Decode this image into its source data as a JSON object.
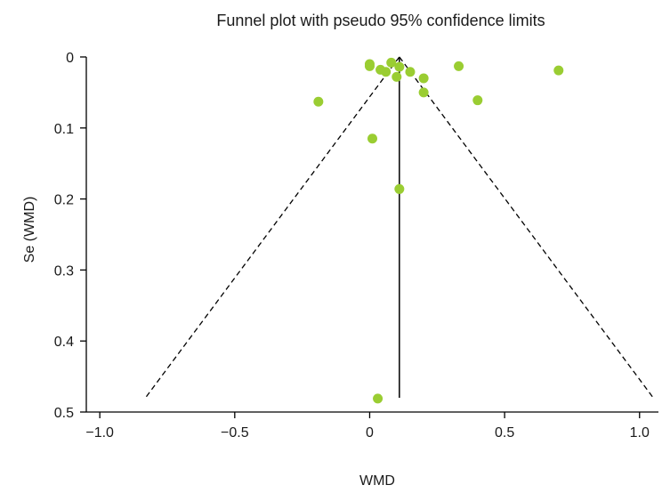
{
  "chart_data": {
    "type": "scatter",
    "title": "Funnel plot with pseudo 95% confidence limits",
    "xlabel": "WMD",
    "ylabel": "Se (WMD)",
    "xlim": [
      -1.05,
      1.07
    ],
    "ylim": [
      0.5,
      0.0
    ],
    "y_inverted": true,
    "xticks": [
      -1.0,
      -0.5,
      0,
      0.5,
      1.0
    ],
    "xtick_labels": [
      "−1.0",
      "−0.5",
      "0",
      "0.5",
      "1.0"
    ],
    "yticks": [
      0,
      0.1,
      0.2,
      0.3,
      0.4,
      0.5
    ],
    "ytick_labels": [
      "0",
      "0.1",
      "0.2",
      "0.3",
      "0.4",
      "0.5"
    ],
    "grid": false,
    "pooled_estimate": 0.11,
    "se_max": 0.48,
    "points": [
      {
        "x": 0.0,
        "y": 0.01
      },
      {
        "x": 0.0,
        "y": 0.013
      },
      {
        "x": 0.04,
        "y": 0.018
      },
      {
        "x": 0.06,
        "y": 0.021
      },
      {
        "x": 0.08,
        "y": 0.008
      },
      {
        "x": 0.1,
        "y": 0.028
      },
      {
        "x": 0.11,
        "y": 0.014
      },
      {
        "x": 0.15,
        "y": 0.021
      },
      {
        "x": 0.2,
        "y": 0.03
      },
      {
        "x": 0.2,
        "y": 0.05
      },
      {
        "x": 0.33,
        "y": 0.013
      },
      {
        "x": 0.4,
        "y": 0.061
      },
      {
        "x": 0.7,
        "y": 0.019
      },
      {
        "x": -0.19,
        "y": 0.063
      },
      {
        "x": 0.01,
        "y": 0.115
      },
      {
        "x": 0.11,
        "y": 0.186
      },
      {
        "x": 0.03,
        "y": 0.481
      }
    ],
    "colors": {
      "point": "#9acd32",
      "lines": "#000000",
      "axis": "#000000"
    }
  }
}
